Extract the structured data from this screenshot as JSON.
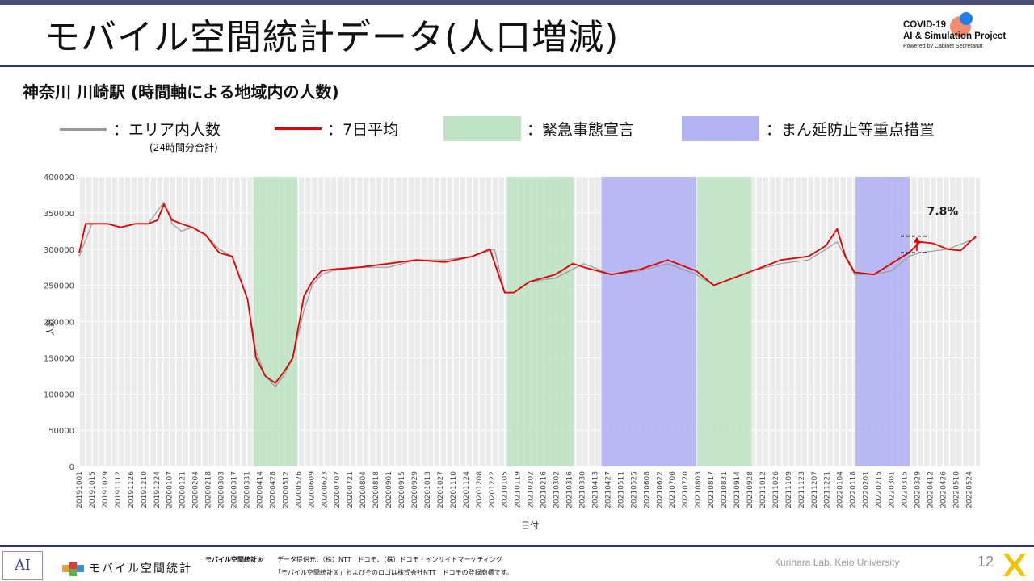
{
  "slide": {
    "title": "モバイル空間統計データ(人口増減)",
    "subtitle": "神奈川 川崎駅 (時間軸による地域内の人数)",
    "page_number": "12"
  },
  "logo": {
    "line1": "COVID-19",
    "line2": "AI & Simulation Project",
    "line3": "Powered by Cabinet Secretariat"
  },
  "legend": {
    "area_label": "：エリア内人数",
    "area_note": "(24時間分合計)",
    "avg_label": "：7日平均",
    "emergency_label": "：緊急事態宣言",
    "priority_label": "：まん延防止等重点措置",
    "colors": {
      "area": "#999999",
      "avg": "#e00000",
      "emergency": "#bfe3c4",
      "priority": "#b3b3f3"
    }
  },
  "footer": {
    "mobile_logo_text": "モバイル空間統計",
    "brand": "モバイル空間統計®",
    "source": "データ提供元：（株）NTT　ドコモ、（株）ドコモ・インサイトマーケティング",
    "trademark": "「モバイル空間統計®」およびそのロゴは株式会社NTT　ドコモの登録商標です。",
    "lab": "Kurihara Lab. Keio University",
    "ai_mark": "AI"
  },
  "chart_data": {
    "type": "line",
    "ylabel": "人数",
    "xlabel": "日付",
    "ylim": [
      0,
      400000
    ],
    "yticks": [
      0,
      50000,
      100000,
      150000,
      200000,
      250000,
      300000,
      350000,
      400000
    ],
    "xlim": [
      "2019-10-01",
      "2022-06-05"
    ],
    "x_tick_labels": [
      "20191001",
      "20191015",
      "20191029",
      "20191112",
      "20191126",
      "20191210",
      "20191224",
      "20200107",
      "20200121",
      "20200204",
      "20200218",
      "20200303",
      "20200317",
      "20200331",
      "20200414",
      "20200428",
      "20200512",
      "20200526",
      "20200609",
      "20200623",
      "20200707",
      "20200721",
      "20200804",
      "20200818",
      "20200901",
      "20200915",
      "20200929",
      "20201013",
      "20201027",
      "20201110",
      "20201124",
      "20201208",
      "20201222",
      "20210105",
      "20210119",
      "20210202",
      "20210216",
      "20210302",
      "20210316",
      "20210330",
      "20210413",
      "20210427",
      "20210511",
      "20210525",
      "20210608",
      "20210622",
      "20210706",
      "20210720",
      "20210803",
      "20210817",
      "20210831",
      "20210914",
      "20210928",
      "20211012",
      "20211026",
      "20211109",
      "20211123",
      "20211207",
      "20211221",
      "20220104",
      "20220118",
      "20220201",
      "20220215",
      "20220301",
      "20220315",
      "20220329",
      "20220412",
      "20220426",
      "20220510",
      "20220524"
    ],
    "x_tick_labels_shown": [
      "20191001",
      "20191015",
      "20191029",
      "20191112",
      "20191126",
      "20191210",
      "20191224",
      "20200107",
      "20200121",
      "20200204",
      "20200218",
      "20200303",
      "20200317",
      "20200331",
      "20200414",
      "20200428",
      "20200512",
      "20200526",
      "20200609",
      "20200623",
      "20200707",
      "20200721",
      "20200804",
      "20200818",
      "20200901",
      "20200915",
      "20200929",
      "20201013",
      "20201027",
      "20201110",
      "20201124",
      "20201208",
      "20201222",
      "20210105",
      "20210119",
      "20210202",
      "20210216",
      "20210302",
      "20210316",
      "20210330",
      "20210413",
      "20210427",
      "20210511",
      "20210525",
      "20210608",
      "20210622",
      "20210706",
      "20210720",
      "20210803",
      "20210817",
      "20210831",
      "20210914",
      "20210928",
      "20211012",
      "20211026",
      "20211109",
      "20211123",
      "20211207",
      "20211221",
      "20220104",
      "20220118",
      "20220201",
      "20220215",
      "20220301",
      "20220315",
      "20220329",
      "20220412",
      "20220426",
      "20220510",
      "20220524"
    ],
    "shaded_periods": [
      {
        "type": "emergency",
        "start": "2020-04-07",
        "end": "2020-05-25"
      },
      {
        "type": "emergency",
        "start": "2021-01-08",
        "end": "2021-03-21"
      },
      {
        "type": "priority",
        "start": "2021-04-20",
        "end": "2021-08-01"
      },
      {
        "type": "emergency",
        "start": "2021-08-02",
        "end": "2021-09-30"
      },
      {
        "type": "priority",
        "start": "2022-01-21",
        "end": "2022-03-21"
      }
    ],
    "series": [
      {
        "name": "エリア内人数",
        "color": "#999999",
        "x": [
          "2019-10-01",
          "2019-10-15",
          "2019-11-01",
          "2019-11-15",
          "2019-12-01",
          "2019-12-15",
          "2020-01-01",
          "2020-01-10",
          "2020-01-20",
          "2020-02-01",
          "2020-02-15",
          "2020-03-01",
          "2020-03-15",
          "2020-04-01",
          "2020-04-10",
          "2020-04-20",
          "2020-05-01",
          "2020-05-10",
          "2020-05-20",
          "2020-06-01",
          "2020-06-10",
          "2020-06-20",
          "2020-07-01",
          "2020-08-01",
          "2020-09-01",
          "2020-10-01",
          "2020-11-01",
          "2020-12-01",
          "2020-12-25",
          "2021-01-05",
          "2021-01-15",
          "2021-02-01",
          "2021-03-01",
          "2021-04-01",
          "2021-05-01",
          "2021-06-01",
          "2021-07-01",
          "2021-08-01",
          "2021-08-20",
          "2021-09-10",
          "2021-10-01",
          "2021-11-01",
          "2021-12-01",
          "2021-12-20",
          "2022-01-01",
          "2022-01-20",
          "2022-02-10",
          "2022-03-01",
          "2022-03-20",
          "2022-04-01",
          "2022-05-01",
          "2022-06-01"
        ],
        "values": [
          290000,
          335000,
          335000,
          330000,
          335000,
          335000,
          365000,
          335000,
          325000,
          330000,
          320000,
          300000,
          290000,
          230000,
          160000,
          125000,
          110000,
          125000,
          150000,
          215000,
          250000,
          265000,
          270000,
          275000,
          275000,
          285000,
          285000,
          290000,
          300000,
          240000,
          240000,
          255000,
          260000,
          280000,
          265000,
          270000,
          280000,
          265000,
          250000,
          260000,
          270000,
          280000,
          285000,
          300000,
          310000,
          265000,
          265000,
          270000,
          290000,
          295000,
          300000,
          315000
        ]
      },
      {
        "name": "7日平均",
        "color": "#e00000",
        "x": [
          "2019-10-01",
          "2019-10-08",
          "2019-10-15",
          "2019-11-01",
          "2019-11-15",
          "2019-12-01",
          "2019-12-15",
          "2019-12-25",
          "2020-01-01",
          "2020-01-10",
          "2020-01-20",
          "2020-02-01",
          "2020-02-15",
          "2020-03-01",
          "2020-03-15",
          "2020-04-01",
          "2020-04-10",
          "2020-04-20",
          "2020-05-01",
          "2020-05-10",
          "2020-05-20",
          "2020-06-01",
          "2020-06-10",
          "2020-06-20",
          "2020-07-01",
          "2020-08-01",
          "2020-09-01",
          "2020-10-01",
          "2020-11-01",
          "2020-12-01",
          "2020-12-20",
          "2021-01-05",
          "2021-01-15",
          "2021-02-01",
          "2021-03-01",
          "2021-03-20",
          "2021-04-01",
          "2021-05-01",
          "2021-06-01",
          "2021-07-01",
          "2021-08-01",
          "2021-08-20",
          "2021-09-10",
          "2021-10-01",
          "2021-11-01",
          "2021-12-01",
          "2021-12-20",
          "2022-01-01",
          "2022-01-10",
          "2022-01-20",
          "2022-02-10",
          "2022-03-01",
          "2022-03-20",
          "2022-04-01",
          "2022-04-15",
          "2022-05-01",
          "2022-05-15",
          "2022-06-01"
        ],
        "values": [
          295000,
          335000,
          335000,
          335000,
          330000,
          335000,
          335000,
          340000,
          362000,
          340000,
          335000,
          330000,
          320000,
          295000,
          290000,
          230000,
          150000,
          125000,
          115000,
          130000,
          150000,
          235000,
          255000,
          270000,
          272000,
          275000,
          280000,
          285000,
          282000,
          290000,
          300000,
          240000,
          240000,
          255000,
          265000,
          280000,
          275000,
          265000,
          272000,
          285000,
          270000,
          250000,
          260000,
          270000,
          285000,
          290000,
          305000,
          328000,
          290000,
          268000,
          265000,
          280000,
          295000,
          310000,
          308000,
          300000,
          298000,
          318000
        ]
      }
    ],
    "annotation": {
      "text": "7.8%",
      "from": 295000,
      "to": 318000
    }
  }
}
